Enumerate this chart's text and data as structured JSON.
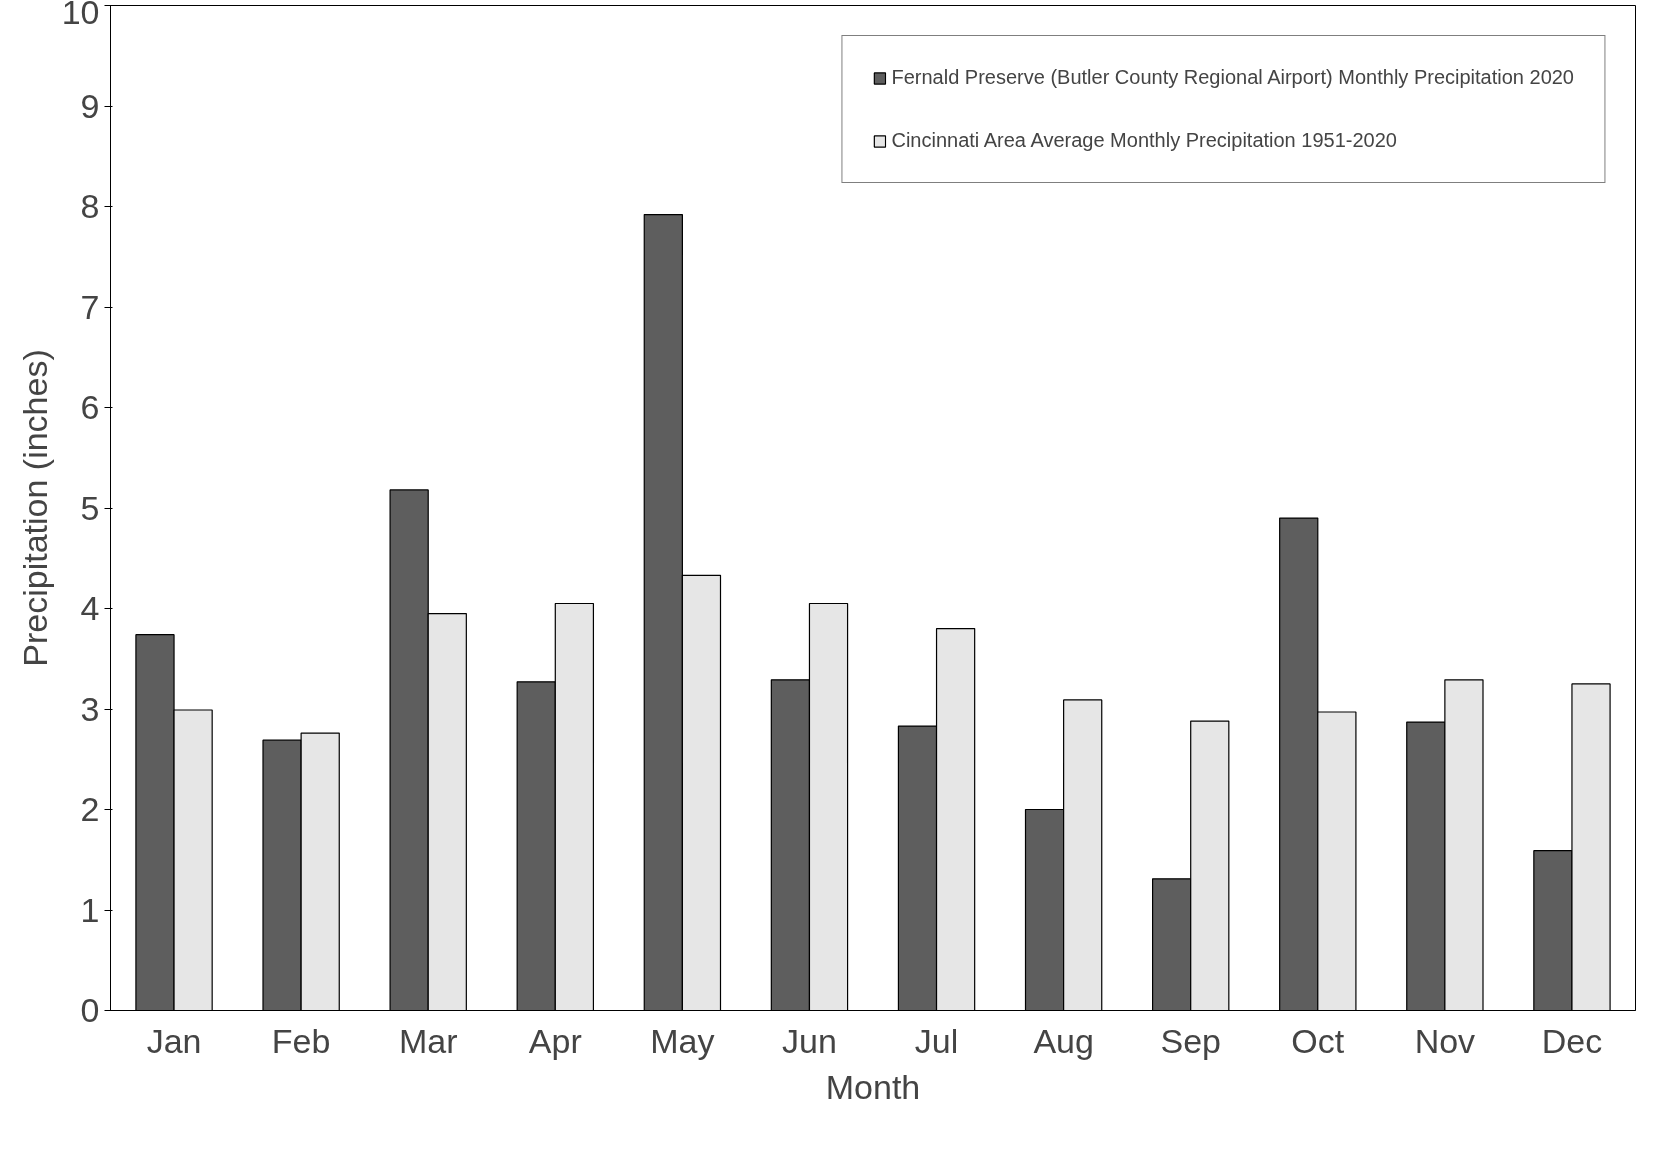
{
  "chart_data": {
    "type": "bar",
    "xlabel": "Month",
    "ylabel": "Precipitation (inches)",
    "categories": [
      "Jan",
      "Feb",
      "Mar",
      "Apr",
      "May",
      "Jun",
      "Jul",
      "Aug",
      "Sep",
      "Oct",
      "Nov",
      "Dec"
    ],
    "series": [
      {
        "name": "Fernald Preserve (Butler County Regional Airport) Monthly Precipitation 2020",
        "color": "#5e5e5e",
        "values": [
          3.74,
          2.69,
          5.18,
          3.27,
          7.92,
          3.29,
          2.83,
          2.0,
          1.31,
          4.9,
          2.87,
          1.59
        ]
      },
      {
        "name": "Cincinnati Area Average Monthly Precipitation 1951-2020",
        "color": "#e6e6e6",
        "values": [
          2.99,
          2.76,
          3.95,
          4.05,
          4.33,
          4.05,
          3.8,
          3.09,
          2.88,
          2.97,
          3.29,
          3.25
        ]
      }
    ],
    "ylim": [
      0,
      10
    ],
    "yticks": [
      0,
      1,
      2,
      3,
      4,
      5,
      6,
      7,
      8,
      9,
      10
    ],
    "grid": false,
    "legend": "top right"
  }
}
